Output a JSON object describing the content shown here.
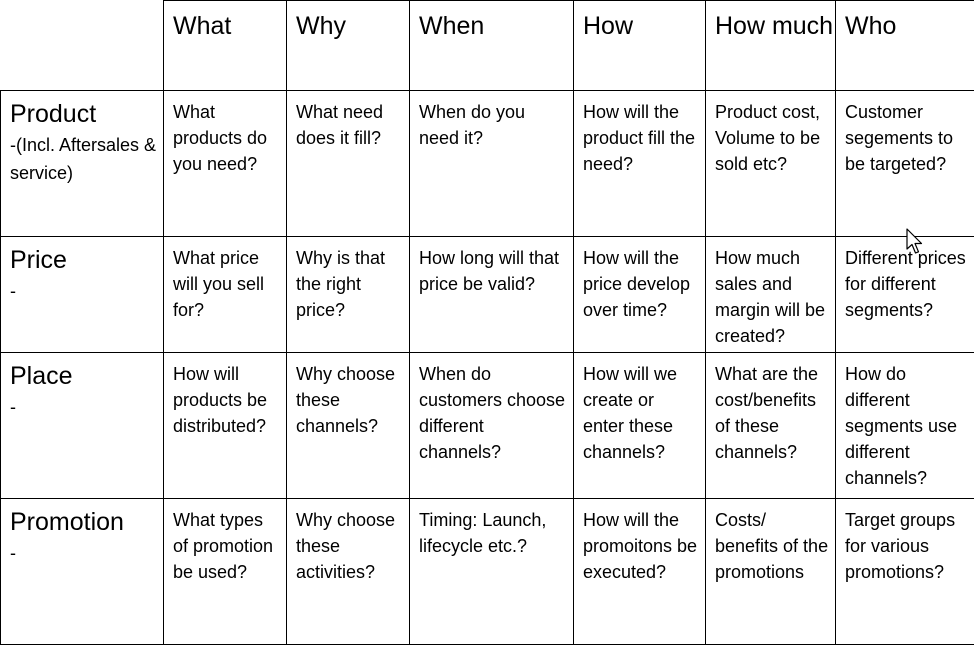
{
  "table": {
    "columns": [
      "What",
      "Why",
      "When",
      "How",
      "How much",
      "Who"
    ],
    "rows": [
      {
        "title": "Product",
        "subtitle": "-(Incl. Aftersales & service)",
        "cells": [
          "What products do you need?",
          "What need does it fill?",
          "When do you need it?",
          "How will the product fill the need?",
          "Product cost, Volume to be sold etc?",
          "Customer segements to be targeted?"
        ]
      },
      {
        "title": "Price",
        "subtitle": "-",
        "cells": [
          "What price will you sell for?",
          "Why is that the right price?",
          "How long will that price be valid?",
          "How will the price develop over time?",
          "How much sales and margin will be created?",
          "Different prices for different segments?"
        ]
      },
      {
        "title": "Place",
        "subtitle": "-",
        "cells": [
          "How will products be distributed?",
          "Why choose these channels?",
          "When do customers choose different channels?",
          "How will we create or enter these channels?",
          "What are the cost/benefits of these channels?",
          "How do different segments use different channels?"
        ]
      },
      {
        "title": "Promotion",
        "subtitle": "-",
        "cells": [
          "What types of promotion be used?",
          "Why choose these activities?",
          "Timing: Launch, lifecycle etc.?",
          "How will the promoitons be executed?",
          "Costs/ benefits of the promotions",
          "Target groups for various promotions?"
        ]
      }
    ]
  },
  "icons": {
    "cursor": "mouse-pointer-icon"
  }
}
